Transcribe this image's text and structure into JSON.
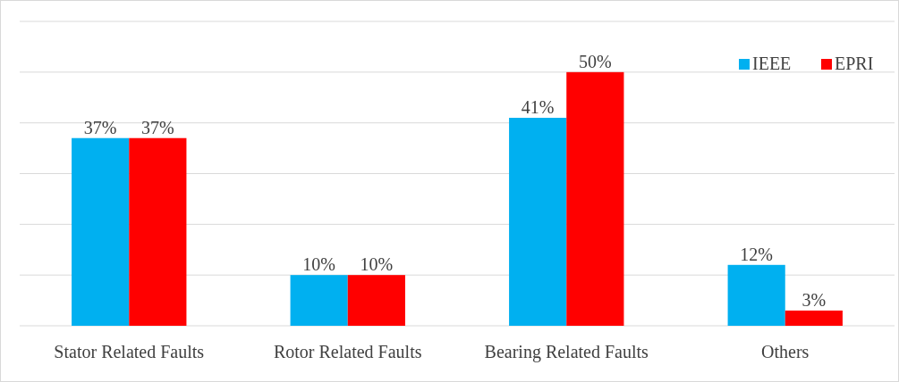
{
  "chart_data": {
    "type": "bar",
    "categories": [
      "Stator Related Faults",
      "Rotor Related Faults",
      "Bearing Related Faults",
      "Others"
    ],
    "series": [
      {
        "name": "IEEE",
        "color": "#00b0f0",
        "values": [
          37,
          10,
          41,
          12
        ],
        "value_labels": [
          "37%",
          "10%",
          "41%",
          "12%"
        ]
      },
      {
        "name": "EPRI",
        "color": "#ff0000",
        "values": [
          37,
          10,
          50,
          3
        ],
        "value_labels": [
          "37%",
          "10%",
          "50%",
          "3%"
        ]
      }
    ],
    "ylim": [
      0,
      60
    ],
    "yticks": [
      {
        "value": 0,
        "label": null
      },
      {
        "value": 10,
        "label": null
      },
      {
        "value": 20,
        "label": null
      },
      {
        "value": 30,
        "label": null
      },
      {
        "value": 40,
        "label": null
      },
      {
        "value": 50,
        "label": null
      },
      {
        "value": 60,
        "label": null
      }
    ],
    "grid": "y",
    "legend": "top right"
  }
}
